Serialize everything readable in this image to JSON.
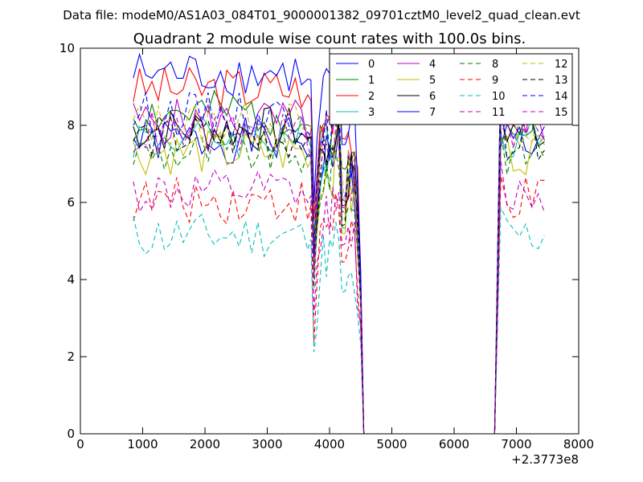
{
  "figure": {
    "suptitle": "Data file: modeM0/AS1A03_084T01_9000001382_09701cztM0_level2_quad_clean.evt"
  },
  "chart_data": {
    "type": "line",
    "title": "Quadrant 2 module wise count rates with 100.0s bins.",
    "xlabel": "",
    "ylabel": "",
    "x_offset_label": "+2.3773e8",
    "xlim": [
      0,
      8000
    ],
    "ylim": [
      0,
      10
    ],
    "xticks": [
      "0",
      "1000",
      "2000",
      "3000",
      "4000",
      "5000",
      "6000",
      "7000",
      "8000"
    ],
    "yticks": [
      "0",
      "2",
      "4",
      "6",
      "8",
      "10"
    ],
    "grid": false,
    "legend_location": "upper-right, 4 columns",
    "x": [
      850,
      950,
      1050,
      1150,
      1250,
      1350,
      1450,
      1550,
      1650,
      1750,
      1850,
      1950,
      2050,
      2150,
      2250,
      2350,
      2450,
      2550,
      2650,
      2750,
      2850,
      2950,
      3050,
      3150,
      3250,
      3350,
      3450,
      3550,
      3650,
      3700,
      3750,
      3800,
      3850,
      3900,
      3950,
      4000,
      4050,
      4100,
      4150,
      4200,
      4250,
      4300,
      4350,
      4400,
      4450,
      4500,
      4550,
      4650,
      4750,
      4850,
      4950,
      5050,
      5150,
      5250,
      5350,
      5450,
      5550,
      5650,
      5750,
      5850,
      5950,
      6050,
      6150,
      6250,
      6350,
      6450,
      6550,
      6650,
      6750,
      6850,
      6950,
      7050,
      7150,
      7250,
      7350,
      7450
    ],
    "series": [
      {
        "name": "0",
        "color": "#0000ff",
        "dash": "solid",
        "base": 7.6,
        "seed": 1
      },
      {
        "name": "1",
        "color": "#008000",
        "dash": "solid",
        "base": 8.3,
        "seed": 2
      },
      {
        "name": "2",
        "color": "#ff0000",
        "dash": "solid",
        "base": 8.95,
        "seed": 3
      },
      {
        "name": "3",
        "color": "#00bfbf",
        "dash": "solid",
        "base": 7.7,
        "seed": 4
      },
      {
        "name": "4",
        "color": "#bf00bf",
        "dash": "solid",
        "base": 8.1,
        "seed": 5
      },
      {
        "name": "5",
        "color": "#bfbf00",
        "dash": "solid",
        "base": 7.3,
        "seed": 6
      },
      {
        "name": "6",
        "color": "#000000",
        "dash": "solid",
        "base": 7.9,
        "seed": 7
      },
      {
        "name": "7",
        "color": "#0000ff",
        "dash": "solid",
        "base": 9.35,
        "seed": 8
      },
      {
        "name": "8",
        "color": "#008000",
        "dash": "dashed",
        "base": 7.3,
        "seed": 9
      },
      {
        "name": "9",
        "color": "#ff0000",
        "dash": "dashed",
        "base": 6.05,
        "seed": 10
      },
      {
        "name": "10",
        "color": "#00bfbf",
        "dash": "dashed",
        "base": 5.15,
        "seed": 11
      },
      {
        "name": "11",
        "color": "#bf00bf",
        "dash": "dashed",
        "base": 6.25,
        "seed": 12
      },
      {
        "name": "12",
        "color": "#bfbf00",
        "dash": "dashed",
        "base": 8.05,
        "seed": 13
      },
      {
        "name": "13",
        "color": "#000000",
        "dash": "dashed",
        "base": 7.7,
        "seed": 14
      },
      {
        "name": "14",
        "color": "#0000ff",
        "dash": "dashed",
        "base": 8.3,
        "seed": 15
      },
      {
        "name": "15",
        "color": "#bf00bf",
        "dash": "dashed",
        "base": 7.8,
        "seed": 16
      }
    ]
  }
}
